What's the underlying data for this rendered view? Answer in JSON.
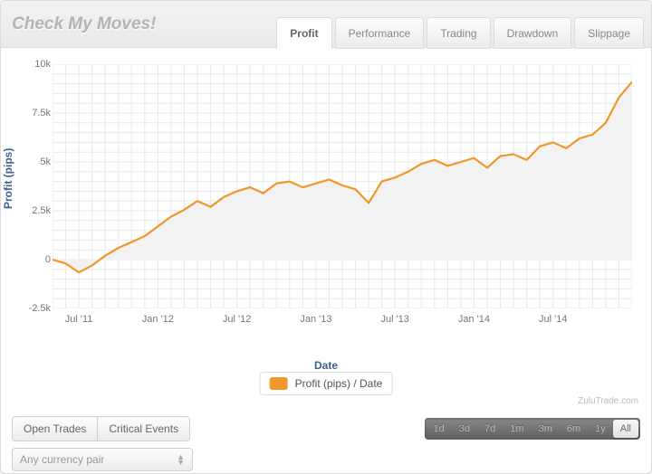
{
  "header": {
    "title": "Check My Moves!",
    "tabs": [
      {
        "label": "Profit",
        "active": true
      },
      {
        "label": "Performance",
        "active": false
      },
      {
        "label": "Trading",
        "active": false
      },
      {
        "label": "Drawdown",
        "active": false
      },
      {
        "label": "Slippage",
        "active": false
      }
    ]
  },
  "chart": {
    "type": "area-line",
    "yaxis_title": "Profit (pips)",
    "xaxis_title": "Date",
    "line_color": "#f0972c",
    "line_width": 2.2,
    "fill_color": "#f2f2f2",
    "background_color": "#ffffff",
    "grid_color": "#e9e9e9",
    "axis_title_color": "#3f5f8f",
    "tick_label_color": "#777777",
    "axis_title_fontsize": 12,
    "tick_fontsize": 11,
    "ylim": [
      -2500,
      10000
    ],
    "yticks": [
      -2500,
      0,
      2500,
      5000,
      7500,
      10000
    ],
    "ytick_labels": [
      "-2.5k",
      "0",
      "2.5k",
      "5k",
      "7.5k",
      "10k"
    ],
    "x_range": [
      0,
      44
    ],
    "xticks": [
      2,
      8,
      14,
      20,
      26,
      32,
      38
    ],
    "xtick_labels": [
      "Jul '11",
      "Jan '12",
      "Jul '12",
      "Jan '13",
      "Jul '13",
      "Jan '14",
      "Jul '14"
    ],
    "series": {
      "values": [
        0,
        -200,
        -650,
        -300,
        200,
        600,
        900,
        1200,
        1700,
        2200,
        2550,
        3000,
        2700,
        3200,
        3500,
        3700,
        3400,
        3900,
        4000,
        3700,
        3900,
        4100,
        3800,
        3600,
        2900,
        4000,
        4200,
        4500,
        4900,
        5100,
        4800,
        5000,
        5200,
        4700,
        5300,
        5400,
        5100,
        5800,
        6000,
        5700,
        6200,
        6400,
        7000,
        8300,
        9100
      ]
    },
    "legend_label": "Profit (pips) / Date",
    "attribution": "ZuluTrade.com"
  },
  "footer": {
    "buttons": [
      {
        "label": "Open Trades"
      },
      {
        "label": "Critical Events"
      }
    ],
    "range_selector": [
      {
        "label": "1d",
        "active": false
      },
      {
        "label": "3d",
        "active": false
      },
      {
        "label": "7d",
        "active": false
      },
      {
        "label": "1m",
        "active": false
      },
      {
        "label": "3m",
        "active": false
      },
      {
        "label": "6m",
        "active": false
      },
      {
        "label": "1y",
        "active": false
      },
      {
        "label": "All",
        "active": true
      }
    ],
    "dropdown": {
      "placeholder": "Any currency pair"
    }
  }
}
